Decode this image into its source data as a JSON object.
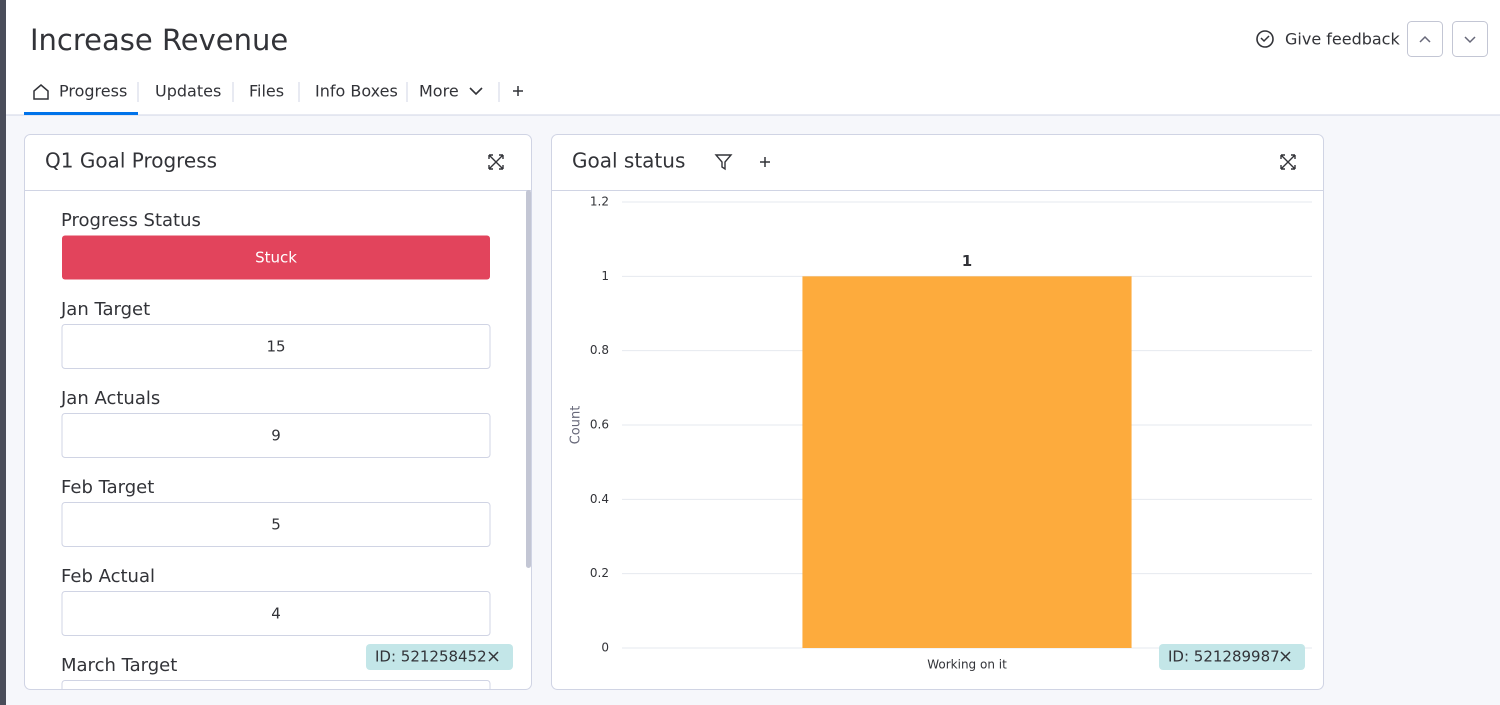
{
  "header": {
    "title": "Increase Revenue",
    "feedback": "Give feedback"
  },
  "tabs": [
    "Progress",
    "Updates",
    "Files",
    "Info Boxes",
    "More"
  ],
  "left_widget": {
    "title": "Q1 Goal Progress",
    "fields": [
      {
        "label": "Progress Status",
        "value": "Stuck",
        "color": "#e2445c"
      },
      {
        "label": "Jan Target",
        "value": 15
      },
      {
        "label": "Jan Actuals",
        "value": 9
      },
      {
        "label": "Feb Target",
        "value": 5
      },
      {
        "label": "Feb Actual",
        "value": 4
      },
      {
        "label": "March Target"
      }
    ],
    "id_tag": "ID: 521258452"
  },
  "right_widget": {
    "title": "Goal status",
    "id_tag": "ID: 521289987"
  },
  "chart_data": {
    "type": "bar",
    "ylabel": "Count",
    "categories": [
      "Working on it"
    ],
    "values": [
      1
    ],
    "color": "#fdab3d",
    "ylim": [
      0,
      1.2
    ],
    "yticks": [
      0,
      0.2,
      0.4,
      0.6,
      0.8,
      1,
      1.2
    ],
    "grid": true
  }
}
